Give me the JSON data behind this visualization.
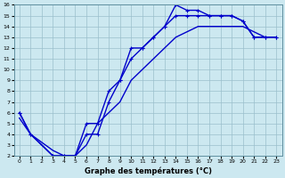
{
  "title": "Graphe des températures (°C)",
  "background_color": "#cce8f0",
  "line_color": "#0000cc",
  "xlim": [
    -0.5,
    23.5
  ],
  "ylim": [
    2,
    16
  ],
  "xticks": [
    0,
    1,
    2,
    3,
    4,
    5,
    6,
    7,
    8,
    9,
    10,
    11,
    12,
    13,
    14,
    15,
    16,
    17,
    18,
    19,
    20,
    21,
    22,
    23
  ],
  "yticks": [
    2,
    3,
    4,
    5,
    6,
    7,
    8,
    9,
    10,
    11,
    12,
    13,
    14,
    15,
    16
  ],
  "line1_x": [
    0,
    1,
    3,
    4,
    5,
    6,
    7,
    8,
    9,
    10,
    11,
    12,
    13,
    14,
    15,
    16,
    17,
    18,
    19,
    20,
    21,
    22,
    23
  ],
  "line1_y": [
    6,
    4,
    2,
    2,
    2,
    4,
    4,
    7,
    9,
    12,
    12,
    13,
    14,
    16,
    15.5,
    15.5,
    15,
    15,
    15,
    14.5,
    13,
    13,
    13
  ],
  "line2_x": [
    0,
    1,
    3,
    4,
    5,
    6,
    7,
    8,
    9,
    10,
    11,
    12,
    13,
    14,
    15,
    16,
    17,
    18,
    19,
    20,
    21,
    22,
    23
  ],
  "line2_y": [
    6,
    4,
    2,
    2,
    2,
    5,
    5,
    8,
    9,
    11,
    12,
    13,
    14,
    15,
    15,
    15,
    15,
    15,
    15,
    14.5,
    13,
    13,
    13
  ],
  "line3_x": [
    0,
    1,
    3,
    4,
    5,
    6,
    7,
    8,
    9,
    10,
    11,
    12,
    13,
    14,
    15,
    16,
    17,
    18,
    19,
    20,
    21,
    22,
    23
  ],
  "line3_y": [
    5.5,
    4,
    2.5,
    2,
    2,
    3,
    5,
    6,
    7,
    9,
    10,
    11,
    12,
    13,
    13.5,
    14,
    14,
    14,
    14,
    14,
    13.5,
    13,
    13
  ]
}
